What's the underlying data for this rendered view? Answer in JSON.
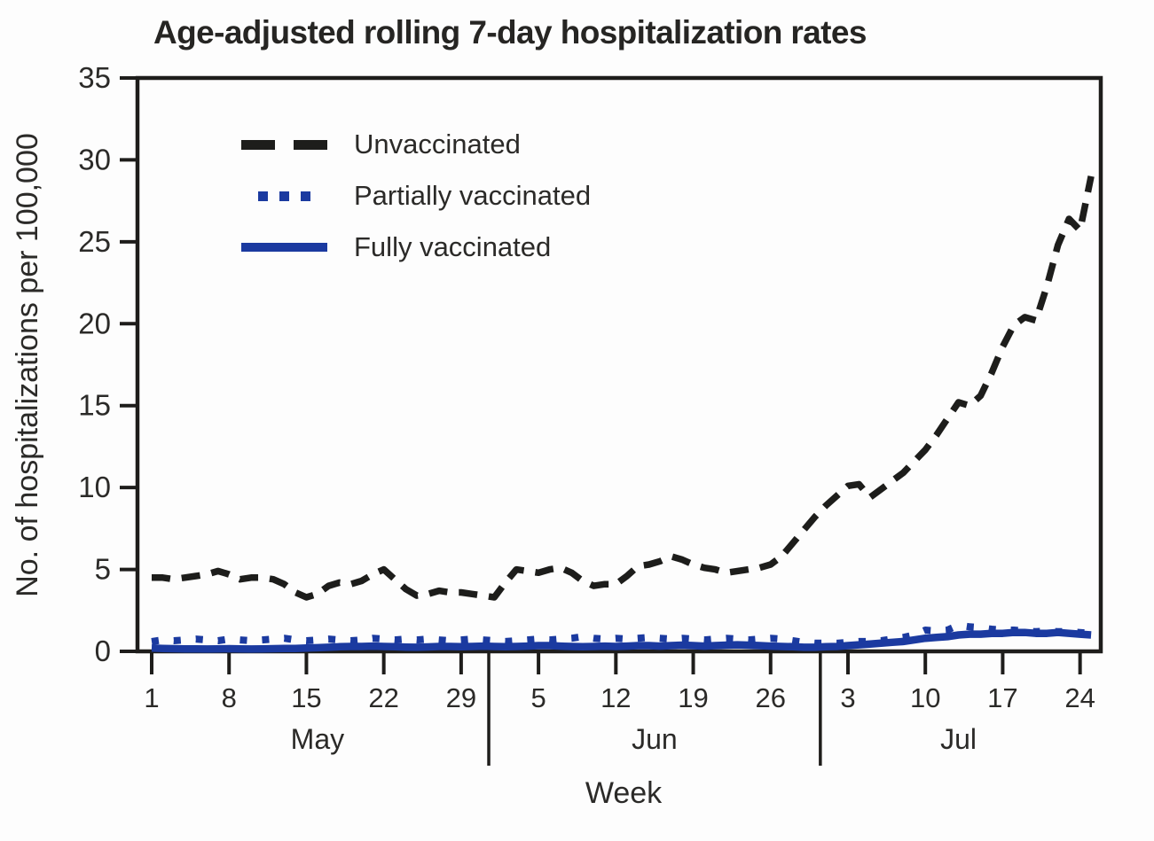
{
  "title": "Age-adjusted rolling 7-day hospitalization rates",
  "colors": {
    "line_black": "#1d1d1b",
    "line_blue": "#1b3aa0",
    "axis": "#1e1d1b",
    "text": "#2b2a28",
    "title_text": "#262523",
    "background": "#fdfdfd"
  },
  "legend": {
    "position": "top-left-inside",
    "items": [
      "Unvaccinated",
      "Partially vaccinated",
      "Fully vaccinated"
    ]
  },
  "chart_data": {
    "type": "line",
    "title": "Age-adjusted rolling 7-day hospitalization rates",
    "xlabel": "Week",
    "ylabel": "No. of hospitalizations per 100,000",
    "ylim": [
      0,
      35
    ],
    "yticks": [
      0,
      5,
      10,
      15,
      20,
      25,
      30,
      35
    ],
    "grid": false,
    "months": [
      {
        "name": "May",
        "days": 31,
        "tick_days": [
          1,
          8,
          15,
          22,
          29
        ]
      },
      {
        "name": "Jun",
        "days": 30,
        "tick_days": [
          5,
          12,
          19,
          26
        ]
      },
      {
        "name": "Jul",
        "days": 25,
        "tick_days": [
          3,
          10,
          17,
          24
        ]
      }
    ],
    "series": [
      {
        "name": "Unvaccinated",
        "style": "dashed",
        "color": "#1d1d1b",
        "values": [
          4.5,
          4.5,
          4.4,
          4.5,
          4.6,
          4.7,
          4.9,
          4.7,
          4.4,
          4.5,
          4.5,
          4.4,
          4.1,
          3.6,
          3.3,
          3.5,
          4.0,
          4.2,
          4.1,
          4.3,
          4.7,
          5.0,
          4.4,
          3.8,
          3.4,
          3.5,
          3.7,
          3.6,
          3.6,
          3.5,
          3.4,
          3.3,
          4.2,
          5.0,
          4.9,
          4.8,
          5.0,
          5.1,
          4.8,
          4.3,
          4.0,
          4.1,
          4.1,
          4.6,
          5.2,
          5.3,
          5.5,
          5.8,
          5.6,
          5.3,
          5.1,
          5.0,
          4.8,
          4.9,
          5.0,
          5.1,
          5.3,
          5.8,
          6.6,
          7.4,
          8.2,
          8.9,
          9.5,
          10.1,
          10.2,
          9.4,
          9.9,
          10.4,
          10.9,
          11.6,
          12.3,
          13.2,
          14.2,
          15.2,
          15.0,
          15.6,
          17.0,
          18.6,
          19.9,
          20.4,
          20.2,
          22.3,
          24.8,
          26.4,
          25.7,
          29.0
        ]
      },
      {
        "name": "Partially vaccinated",
        "style": "dotted",
        "color": "#1b3aa0",
        "values": [
          0.6,
          0.7,
          0.65,
          0.7,
          0.75,
          0.7,
          0.65,
          0.75,
          0.7,
          0.65,
          0.7,
          0.75,
          0.8,
          0.7,
          0.65,
          0.7,
          0.75,
          0.7,
          0.65,
          0.7,
          0.8,
          0.75,
          0.7,
          0.75,
          0.7,
          0.75,
          0.7,
          0.65,
          0.7,
          0.75,
          0.7,
          0.65,
          0.6,
          0.65,
          0.7,
          0.75,
          0.7,
          0.75,
          0.8,
          0.9,
          0.8,
          0.75,
          0.8,
          0.75,
          0.8,
          0.85,
          0.8,
          0.75,
          0.8,
          0.75,
          0.7,
          0.75,
          0.8,
          0.75,
          0.7,
          0.75,
          0.8,
          0.75,
          0.65,
          0.55,
          0.5,
          0.5,
          0.5,
          0.55,
          0.6,
          0.6,
          0.65,
          0.75,
          0.85,
          1.0,
          1.3,
          1.25,
          1.3,
          1.6,
          1.5,
          1.45,
          1.35,
          1.3,
          1.3,
          1.25,
          1.2,
          1.25,
          1.2,
          1.2,
          1.15,
          1.1
        ]
      },
      {
        "name": "Fully vaccinated",
        "style": "solid",
        "color": "#1b3aa0",
        "values": [
          0.2,
          0.18,
          0.16,
          0.15,
          0.15,
          0.14,
          0.15,
          0.16,
          0.15,
          0.14,
          0.15,
          0.16,
          0.18,
          0.18,
          0.2,
          0.22,
          0.25,
          0.28,
          0.3,
          0.3,
          0.32,
          0.3,
          0.28,
          0.26,
          0.25,
          0.27,
          0.3,
          0.3,
          0.28,
          0.3,
          0.32,
          0.3,
          0.28,
          0.3,
          0.32,
          0.35,
          0.35,
          0.32,
          0.3,
          0.28,
          0.3,
          0.32,
          0.3,
          0.32,
          0.35,
          0.35,
          0.32,
          0.35,
          0.38,
          0.35,
          0.32,
          0.35,
          0.38,
          0.4,
          0.38,
          0.35,
          0.32,
          0.3,
          0.28,
          0.25,
          0.25,
          0.28,
          0.3,
          0.35,
          0.4,
          0.45,
          0.5,
          0.55,
          0.6,
          0.7,
          0.8,
          0.85,
          0.9,
          1.0,
          1.05,
          1.05,
          1.1,
          1.1,
          1.15,
          1.15,
          1.1,
          1.1,
          1.15,
          1.1,
          1.05,
          1.0
        ]
      }
    ]
  }
}
